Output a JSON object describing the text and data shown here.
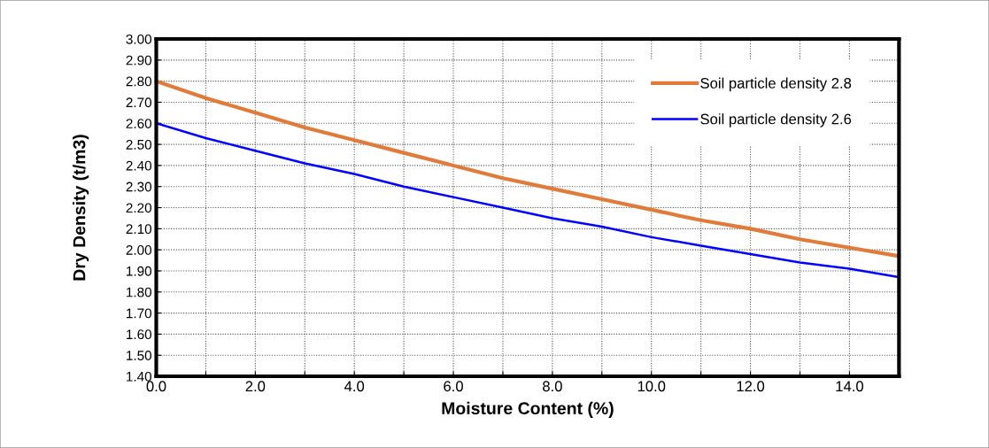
{
  "chart_data": {
    "type": "line",
    "xlabel": "Moisture Content (%)",
    "ylabel": "Dry Density (t/m3)",
    "x": [
      0,
      1,
      2,
      3,
      4,
      5,
      6,
      7,
      8,
      9,
      10,
      11,
      12,
      13,
      14,
      15
    ],
    "series": [
      {
        "name": "Soil particle density 2.8",
        "color": "#e07b39",
        "values": [
          2.8,
          2.72,
          2.65,
          2.58,
          2.52,
          2.46,
          2.4,
          2.34,
          2.29,
          2.24,
          2.19,
          2.14,
          2.1,
          2.05,
          2.01,
          1.97
        ]
      },
      {
        "name": "Soil particle density 2.6",
        "color": "#0000ff",
        "values": [
          2.6,
          2.53,
          2.47,
          2.41,
          2.36,
          2.3,
          2.25,
          2.2,
          2.15,
          2.11,
          2.06,
          2.02,
          1.98,
          1.94,
          1.91,
          1.87
        ]
      }
    ],
    "xlim": [
      0,
      15
    ],
    "xticks": [
      {
        "value": 0,
        "label": "0.0"
      },
      {
        "value": 1,
        "label": null
      },
      {
        "value": 2,
        "label": "2.0"
      },
      {
        "value": 3,
        "label": null
      },
      {
        "value": 4,
        "label": "4.0"
      },
      {
        "value": 5,
        "label": null
      },
      {
        "value": 6,
        "label": "6.0"
      },
      {
        "value": 7,
        "label": null
      },
      {
        "value": 8,
        "label": "8.0"
      },
      {
        "value": 9,
        "label": null
      },
      {
        "value": 10,
        "label": "10.0"
      },
      {
        "value": 11,
        "label": null
      },
      {
        "value": 12,
        "label": "12.0"
      },
      {
        "value": 13,
        "label": null
      },
      {
        "value": 14,
        "label": "14.0"
      },
      {
        "value": 15,
        "label": null
      }
    ],
    "ylim": [
      1.4,
      3.0
    ],
    "yticks": [
      {
        "value": 1.4,
        "label": "1.40"
      },
      {
        "value": 1.5,
        "label": "1.50"
      },
      {
        "value": 1.6,
        "label": "1.60"
      },
      {
        "value": 1.7,
        "label": "1.70"
      },
      {
        "value": 1.8,
        "label": "1.80"
      },
      {
        "value": 1.9,
        "label": "1.90"
      },
      {
        "value": 2.0,
        "label": "2.00"
      },
      {
        "value": 2.1,
        "label": "2.10"
      },
      {
        "value": 2.2,
        "label": "2.20"
      },
      {
        "value": 2.3,
        "label": "2.30"
      },
      {
        "value": 2.4,
        "label": "2.40"
      },
      {
        "value": 2.5,
        "label": "2.50"
      },
      {
        "value": 2.6,
        "label": "2.60"
      },
      {
        "value": 2.7,
        "label": "2.70"
      },
      {
        "value": 2.8,
        "label": "2.80"
      },
      {
        "value": 2.9,
        "label": "2.90"
      },
      {
        "value": 3.0,
        "label": "3.00"
      }
    ],
    "grid": true,
    "legend": "top right",
    "marker": "none",
    "line_style": "solid"
  }
}
